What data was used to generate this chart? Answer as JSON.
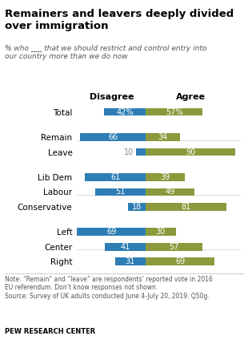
{
  "title": "Remainers and leavers deeply divided\nover immigration",
  "subtitle": "% who ___ that we should restrict and control entry into\nour country more than we do now",
  "categories": [
    "Total",
    "Remain",
    "Leave",
    "Lib Dem",
    "Labour",
    "Conservative",
    "Left",
    "Center",
    "Right"
  ],
  "disagree": [
    42,
    66,
    10,
    61,
    51,
    18,
    69,
    41,
    31
  ],
  "agree": [
    57,
    34,
    90,
    39,
    49,
    81,
    30,
    57,
    69
  ],
  "disagree_labels": [
    "42%",
    "66",
    "10",
    "61",
    "51",
    "18",
    "69",
    "41",
    "31"
  ],
  "agree_labels": [
    "57%",
    "34",
    "90",
    "39",
    "49",
    "81",
    "30",
    "57",
    "69"
  ],
  "color_disagree": "#2E7EB5",
  "color_agree": "#8B9A3C",
  "note1": "Note: “Remain” and “leave” are respondents’ reported vote in 2016",
  "note2": "EU referendum. Don’t know responses not shown.",
  "note3": "Source: Survey of UK adults conducted June 4-July 20, 2019. Q50g.",
  "source": "PEW RESEARCH CENTER",
  "col_header_disagree": "Disagree",
  "col_header_agree": "Agree",
  "bar_height": 0.52,
  "pivot": 69,
  "group_gaps": [
    1,
    3,
    6
  ],
  "label_outside_threshold": 15,
  "outside_label_color": "#888888"
}
